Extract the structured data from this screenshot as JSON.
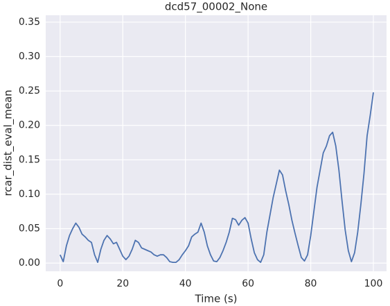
{
  "chart_data": {
    "type": "line",
    "title": "dcd57_00002_None",
    "x_label": "Time (s)",
    "y_label": "rcar_dist_eval_mean",
    "x": [
      0,
      1,
      2,
      3,
      4,
      5,
      6,
      7,
      8,
      9,
      10,
      11,
      12,
      13,
      14,
      15,
      16,
      17,
      18,
      19,
      20,
      21,
      22,
      23,
      24,
      25,
      26,
      27,
      28,
      29,
      30,
      31,
      32,
      33,
      34,
      35,
      36,
      37,
      38,
      39,
      40,
      41,
      42,
      43,
      44,
      45,
      46,
      47,
      48,
      49,
      50,
      51,
      52,
      53,
      54,
      55,
      56,
      57,
      58,
      59,
      60,
      61,
      62,
      63,
      64,
      65,
      66,
      67,
      68,
      69,
      70,
      71,
      72,
      73,
      74,
      75,
      76,
      77,
      78,
      79,
      80,
      81,
      82,
      83,
      84,
      85,
      86,
      87,
      88,
      89,
      90,
      91,
      92,
      93,
      94,
      95,
      96,
      97,
      98,
      99,
      100
    ],
    "values": [
      0.012,
      0.002,
      0.025,
      0.04,
      0.05,
      0.058,
      0.052,
      0.042,
      0.038,
      0.033,
      0.03,
      0.012,
      0.001,
      0.02,
      0.033,
      0.04,
      0.035,
      0.028,
      0.03,
      0.02,
      0.01,
      0.005,
      0.01,
      0.02,
      0.033,
      0.03,
      0.022,
      0.02,
      0.018,
      0.016,
      0.012,
      0.01,
      0.012,
      0.012,
      0.008,
      0.002,
      0.001,
      0.001,
      0.005,
      0.012,
      0.018,
      0.025,
      0.038,
      0.042,
      0.045,
      0.058,
      0.045,
      0.025,
      0.012,
      0.003,
      0.002,
      0.008,
      0.018,
      0.03,
      0.045,
      0.065,
      0.063,
      0.055,
      0.062,
      0.066,
      0.058,
      0.035,
      0.015,
      0.005,
      0.001,
      0.012,
      0.045,
      0.07,
      0.095,
      0.115,
      0.135,
      0.128,
      0.105,
      0.085,
      0.062,
      0.043,
      0.025,
      0.008,
      0.003,
      0.012,
      0.04,
      0.075,
      0.11,
      0.135,
      0.16,
      0.17,
      0.185,
      0.19,
      0.17,
      0.135,
      0.09,
      0.048,
      0.018,
      0.002,
      0.015,
      0.045,
      0.085,
      0.13,
      0.185,
      0.215,
      0.248
    ],
    "color": "#4c72b0",
    "xlim": [
      -4.6,
      104.2
    ],
    "xticks": [
      0,
      20,
      40,
      60,
      80,
      100
    ],
    "ylim": [
      -0.012,
      0.36
    ],
    "yticks": [
      {
        "value": 0,
        "label": "0.00"
      },
      {
        "value": 0.05,
        "label": "0.05"
      },
      {
        "value": 0.1,
        "label": "0.10"
      },
      {
        "value": 0.15,
        "label": "0.15"
      },
      {
        "value": 0.2,
        "label": "0.20"
      },
      {
        "value": 0.25,
        "label": "0.25"
      },
      {
        "value": 0.3,
        "label": "0.30"
      },
      {
        "value": 0.35,
        "label": "0.35"
      }
    ],
    "grid": true
  }
}
